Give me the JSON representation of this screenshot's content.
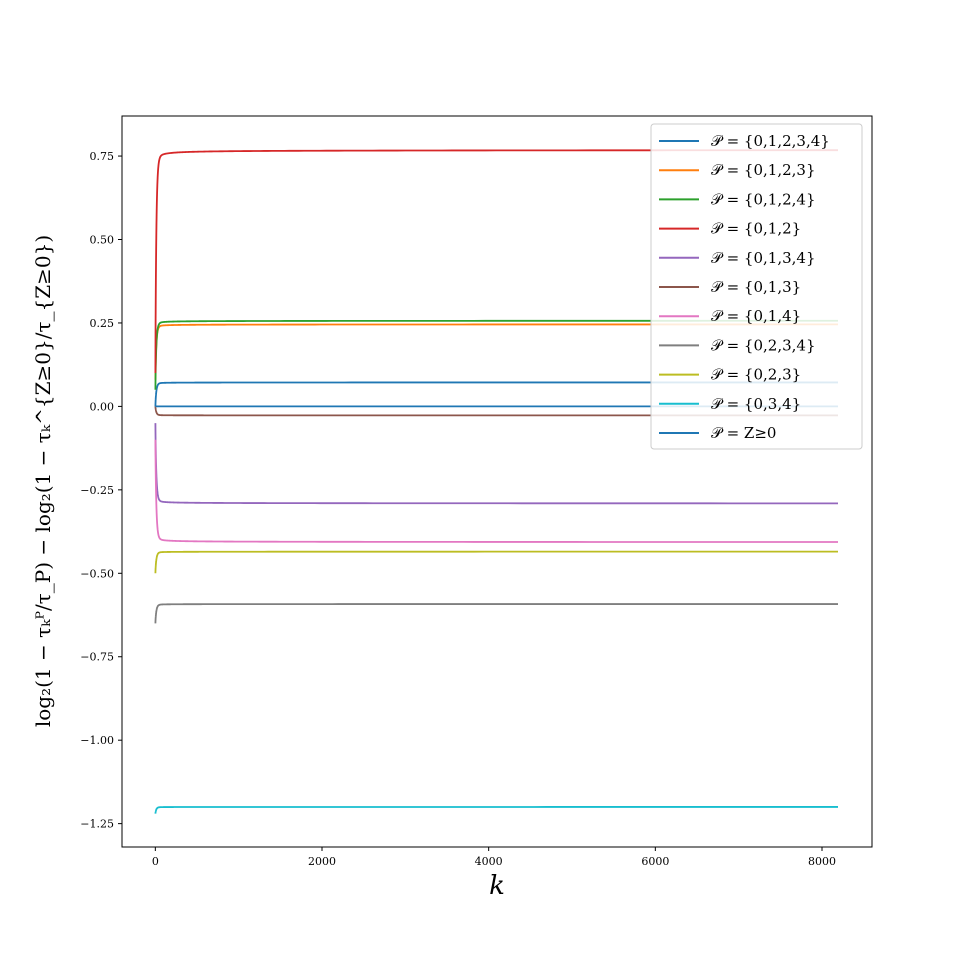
{
  "chart_data": {
    "type": "line",
    "xlabel": "k",
    "ylabel": "log₂(1 − τₖᴾ/τ_P) − log₂(1 − τₖ^{Z≥0}/τ_{Z≥0})",
    "xlim": [
      -400,
      8600
    ],
    "ylim": [
      -1.32,
      0.87
    ],
    "x_ticks": [
      0,
      2000,
      4000,
      6000,
      8000
    ],
    "x_tick_labels": [
      "0",
      "2000",
      "4000",
      "6000",
      "8000"
    ],
    "y_ticks": [
      0.75,
      0.5,
      0.25,
      0.0,
      -0.25,
      -0.5,
      -0.75,
      -1.0,
      -1.25
    ],
    "y_tick_labels": [
      "0.75",
      "0.50",
      "0.25",
      "0.00",
      "−0.25",
      "−0.50",
      "−0.75",
      "−1.00",
      "−1.25"
    ],
    "grid": false,
    "legend_position": "top-right",
    "x_range": [
      1,
      8192
    ],
    "series": [
      {
        "name": "𝒫 = {0,1,2,3,4}",
        "color": "#1f77b4",
        "start": 0.0,
        "plateau": 0.072
      },
      {
        "name": "𝒫 = {0,1,2,3}",
        "color": "#ff7f0e",
        "start": 0.08,
        "plateau": 0.246
      },
      {
        "name": "𝒫 = {0,1,2,4}",
        "color": "#2ca02c",
        "start": 0.05,
        "plateau": 0.257
      },
      {
        "name": "𝒫 = {0,1,2}",
        "color": "#d62728",
        "start": 0.1,
        "plateau": 0.769
      },
      {
        "name": "𝒫 = {0,1,3,4}",
        "color": "#9467bd",
        "start": -0.05,
        "plateau": -0.291
      },
      {
        "name": "𝒫 = {0,1,3}",
        "color": "#8c564b",
        "start": 0.0,
        "plateau": -0.027
      },
      {
        "name": "𝒫 = {0,1,4}",
        "color": "#e377c2",
        "start": -0.1,
        "plateau": -0.407
      },
      {
        "name": "𝒫 = {0,2,3,4}",
        "color": "#7f7f7f",
        "start": -0.65,
        "plateau": -0.592
      },
      {
        "name": "𝒫 = {0,2,3}",
        "color": "#bcbd22",
        "start": -0.5,
        "plateau": -0.435
      },
      {
        "name": "𝒫 = {0,3,4}",
        "color": "#17becf",
        "start": -1.22,
        "plateau": -1.2
      },
      {
        "name": "𝒫 = Z≥0",
        "color": "#1f77b4",
        "start": 0.0,
        "plateau": 0.0
      }
    ]
  }
}
